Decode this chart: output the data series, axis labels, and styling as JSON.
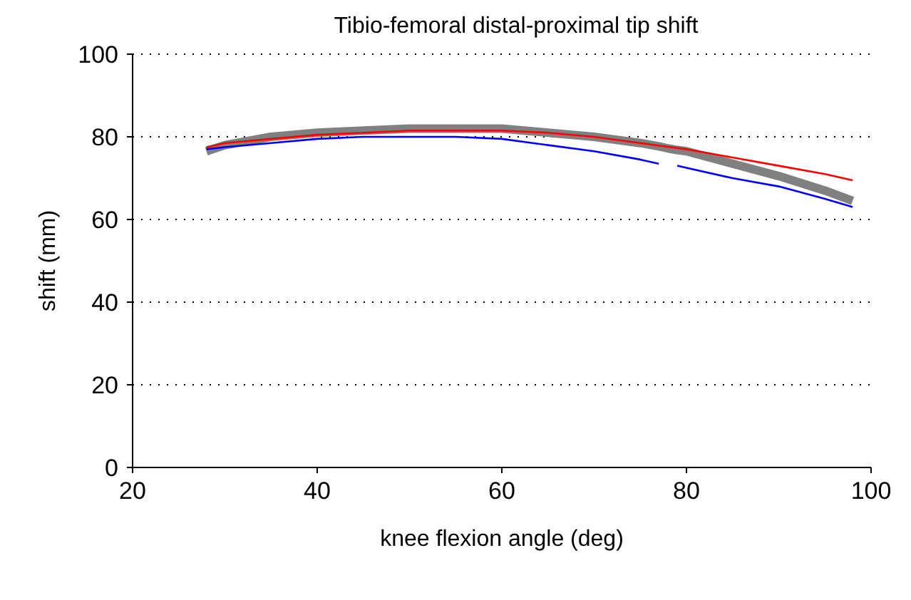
{
  "chart_data": {
    "type": "line",
    "title": "Tibio-femoral distal-proximal tip shift",
    "xlabel": "knee flexion angle (deg)",
    "ylabel": "shift (mm)",
    "x": [
      28,
      30,
      35,
      40,
      45,
      50,
      55,
      60,
      65,
      70,
      75,
      77,
      78,
      79,
      80,
      85,
      90,
      95,
      98
    ],
    "series": [
      {
        "color": "#808080",
        "values": [
          76.5,
          78,
          80,
          81,
          81.5,
          82,
          82,
          82,
          81,
          80,
          78.5,
          77.7,
          77.2,
          76.8,
          76.5,
          73.5,
          70.5,
          67,
          64.5
        ]
      },
      {
        "color": "#ff0000",
        "values": [
          77.5,
          78.5,
          79.5,
          80.5,
          81,
          81.5,
          81.5,
          81.5,
          81,
          80,
          78.5,
          77.9,
          77.6,
          77.3,
          77,
          75,
          73,
          71,
          69.5
        ]
      },
      {
        "color": "#0000ff",
        "values": [
          77,
          77.5,
          78.5,
          79.5,
          80,
          80,
          80,
          79.5,
          78,
          76.5,
          74.5,
          73.5,
          null,
          73,
          72.5,
          70,
          68,
          65,
          63
        ]
      }
    ],
    "xlim": [
      20,
      100
    ],
    "xticks": [
      20,
      40,
      60,
      80,
      100
    ],
    "ylim": [
      0,
      100
    ],
    "yticks": [
      0,
      20,
      40,
      60,
      80,
      100
    ],
    "grid": "y",
    "legend": false,
    "marker": "none",
    "line_style": "solid"
  }
}
